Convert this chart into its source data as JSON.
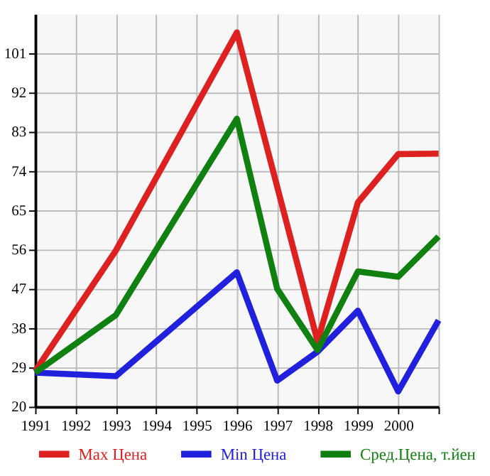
{
  "chart_data": {
    "type": "line",
    "series": [
      {
        "name": "Max Цена",
        "color": "#dd2020",
        "x": [
          1991,
          1993,
          1996,
          1998,
          1999,
          2000,
          2001
        ],
        "values": [
          28.2,
          55.8,
          105.8,
          35,
          66.8,
          77.9,
          78
        ]
      },
      {
        "name": "Min Цена",
        "color": "#2020dd",
        "x": [
          1991,
          1993,
          1996,
          1997,
          1998,
          1999,
          2000,
          2001
        ],
        "values": [
          27.8,
          27,
          50.8,
          26,
          32.6,
          42,
          23.5,
          39.8
        ]
      },
      {
        "name": "Сред.Цена, т.йен",
        "color": "#108010",
        "x": [
          1991,
          1993,
          1996,
          1997,
          1998,
          1999,
          2000,
          2001
        ],
        "values": [
          27.8,
          41,
          86,
          47,
          33,
          51,
          49.8,
          59
        ]
      }
    ],
    "xlim": [
      1991,
      2001
    ],
    "xticks": [
      1991,
      1992,
      1993,
      1994,
      1995,
      1996,
      1997,
      1998,
      1999,
      2000,
      {
        "value": 2001,
        "label": null
      }
    ],
    "ylim": [
      20,
      110
    ],
    "yticks": [
      20,
      29,
      38,
      47,
      56,
      65,
      74,
      83,
      92,
      101
    ],
    "grid": true,
    "legend": "bottom",
    "marker": "none",
    "line_style": "solid"
  }
}
